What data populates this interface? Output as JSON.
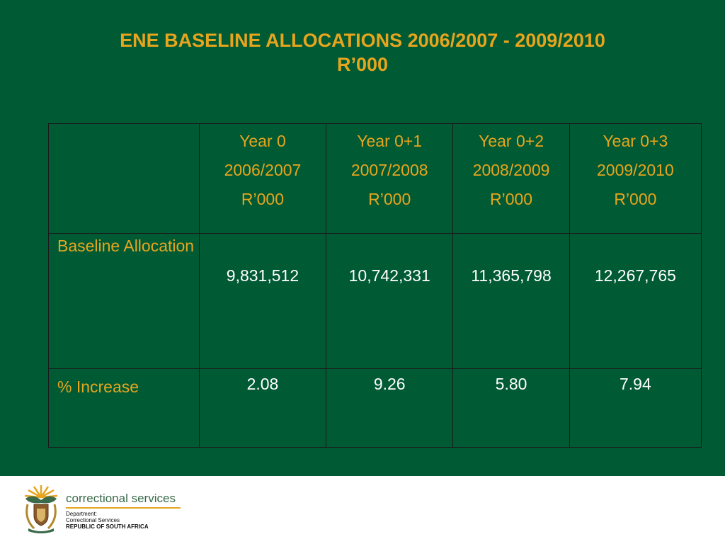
{
  "slide": {
    "title_line1": "ENE BASELINE ALLOCATIONS 2006/2007 - 2009/2010",
    "title_line2": "R’000"
  },
  "table": {
    "columns": [
      {
        "year": "Year 0",
        "period": "2006/2007",
        "unit": "R’000"
      },
      {
        "year": "Year 0+1",
        "period": "2007/2008",
        "unit": "R’000"
      },
      {
        "year": "Year 0+2",
        "period": "2008/2009",
        "unit": "R’000"
      },
      {
        "year": "Year 0+3",
        "period": "2009/2010",
        "unit": "R’000"
      }
    ],
    "rows": [
      {
        "label": "Baseline Allocation",
        "values": [
          "9,831,512",
          "10,742,331",
          "11,365,798",
          "12,267,765"
        ]
      },
      {
        "label": "% Increase",
        "values": [
          "2.08",
          "9.26",
          "5.80",
          "7.94"
        ]
      }
    ]
  },
  "footer": {
    "brand": "correctional services",
    "line1": "Department:",
    "line2": "Correctional Services",
    "line3": "REPUBLIC OF SOUTH AFRICA",
    "crest_icon": "coat-of-arms-icon"
  },
  "colors": {
    "background": "#005a34",
    "title": "#e7a51e",
    "label": "#e7a51e",
    "value": "#ffffff",
    "border": "#1a1a1a"
  }
}
